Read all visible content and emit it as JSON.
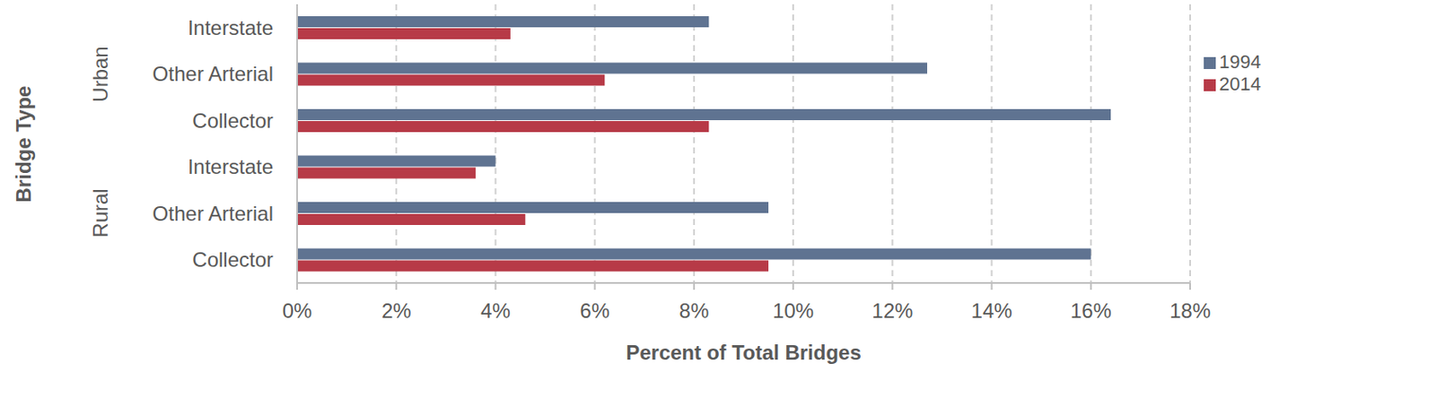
{
  "chart_data": {
    "type": "bar",
    "orientation": "horizontal",
    "categories": [
      "Interstate",
      "Other Arterial",
      "Collector",
      "Interstate",
      "Other Arterial",
      "Collector"
    ],
    "category_groups": [
      "Urban",
      "Urban",
      "Urban",
      "Rural",
      "Rural",
      "Rural"
    ],
    "y_label": "Bridge Type",
    "x_label": "Percent of Total Bridges",
    "series": [
      {
        "name": "1994",
        "color": "#5f7391",
        "values": [
          8.3,
          12.7,
          16.4,
          4.0,
          9.5,
          16.0
        ]
      },
      {
        "name": "2014",
        "color": "#b73a47",
        "values": [
          4.3,
          6.2,
          8.3,
          3.6,
          4.6,
          9.5
        ]
      }
    ],
    "xlim": [
      0,
      18
    ],
    "xticks": [
      {
        "value": 0,
        "label": "0%"
      },
      {
        "value": 2,
        "label": "2%"
      },
      {
        "value": 4,
        "label": "4%"
      },
      {
        "value": 6,
        "label": "6%"
      },
      {
        "value": 8,
        "label": "8%"
      },
      {
        "value": 10,
        "label": "10%"
      },
      {
        "value": 12,
        "label": "12%"
      },
      {
        "value": 14,
        "label": "14%"
      },
      {
        "value": 16,
        "label": "16%"
      },
      {
        "value": 18,
        "label": "18%"
      }
    ],
    "grid": true,
    "legend": "upper right"
  }
}
